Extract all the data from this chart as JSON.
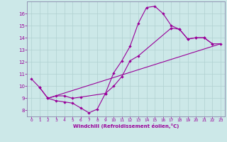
{
  "xlabel": "Windchill (Refroidissement éolien,°C)",
  "bg_color": "#cce8e8",
  "grid_color": "#b0d0d0",
  "line_color": "#990099",
  "spine_color": "#8888aa",
  "xlim": [
    -0.5,
    23.5
  ],
  "ylim": [
    7.5,
    17.0
  ],
  "xticks": [
    0,
    1,
    2,
    3,
    4,
    5,
    6,
    7,
    8,
    9,
    10,
    11,
    12,
    13,
    14,
    15,
    16,
    17,
    18,
    19,
    20,
    21,
    22,
    23
  ],
  "yticks": [
    8,
    9,
    10,
    11,
    12,
    13,
    14,
    15,
    16
  ],
  "curve1_x": [
    0,
    1,
    2,
    3,
    4,
    5,
    6,
    7,
    8,
    9,
    10,
    11,
    12,
    13,
    14,
    15,
    16,
    17,
    18,
    19,
    20,
    21,
    22
  ],
  "curve1_y": [
    10.6,
    9.9,
    9.0,
    8.8,
    8.7,
    8.6,
    8.2,
    7.8,
    8.1,
    9.4,
    11.1,
    12.1,
    13.3,
    15.2,
    16.5,
    16.6,
    16.0,
    15.0,
    14.7,
    13.9,
    14.0,
    14.0,
    13.5
  ],
  "curve2_x": [
    1,
    2,
    3,
    4,
    5,
    6,
    9,
    10,
    11,
    12,
    13,
    17,
    18,
    19,
    20,
    21,
    22,
    23
  ],
  "curve2_y": [
    9.9,
    9.0,
    9.2,
    9.2,
    9.0,
    9.1,
    9.4,
    10.0,
    10.8,
    12.1,
    12.5,
    14.8,
    14.7,
    13.9,
    14.0,
    14.0,
    13.5,
    13.5
  ],
  "curve3_x": [
    2,
    23
  ],
  "curve3_y": [
    9.0,
    13.5
  ]
}
